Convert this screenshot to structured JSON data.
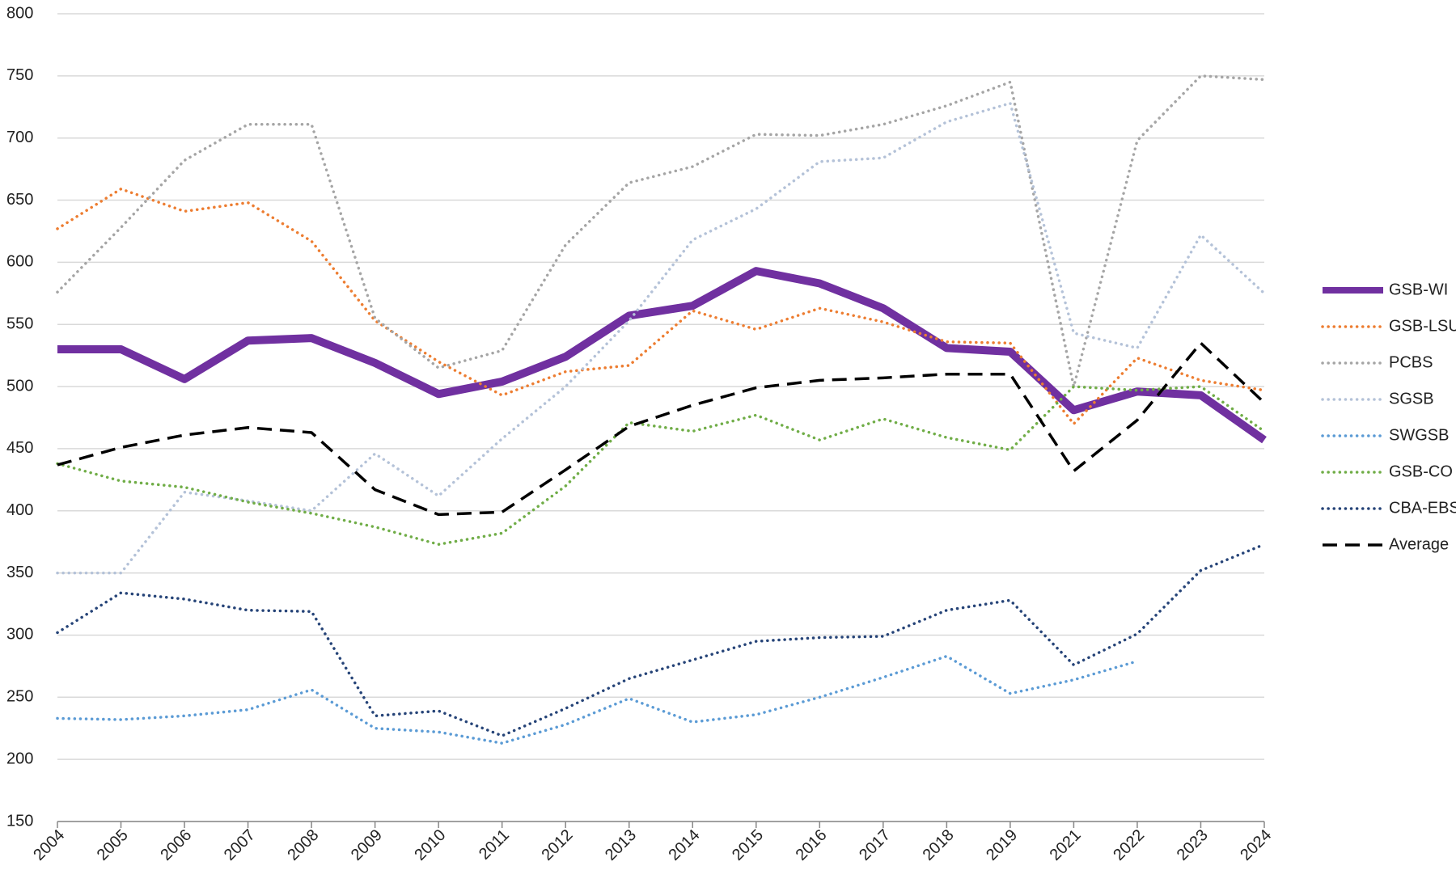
{
  "chart_data": {
    "type": "line",
    "categories": [
      "2004",
      "2005",
      "2006",
      "2007",
      "2008",
      "2009",
      "2010",
      "2011",
      "2012",
      "2013",
      "2014",
      "2015",
      "2016",
      "2017",
      "2018",
      "2019",
      "2021",
      "2022",
      "2023",
      "2024"
    ],
    "ylim": [
      150,
      800
    ],
    "yticks": [
      150,
      200,
      250,
      300,
      350,
      400,
      450,
      500,
      550,
      600,
      650,
      700,
      750,
      800
    ],
    "grid": true,
    "legend": "right",
    "series": [
      {
        "name": "GSB-WI",
        "color": "#7030a0",
        "style": "thick",
        "values": [
          530,
          530,
          506,
          537,
          539,
          519,
          494,
          504,
          524,
          557,
          565,
          593,
          583,
          563,
          531,
          528,
          481,
          496,
          493,
          457
        ]
      },
      {
        "name": "GSB-LSU",
        "color": "#ed7d31",
        "style": "dotted",
        "values": [
          627,
          659,
          641,
          648,
          617,
          553,
          520,
          493,
          512,
          517,
          561,
          546,
          563,
          552,
          536,
          535,
          470,
          523,
          505,
          497
        ]
      },
      {
        "name": "PCBS",
        "color": "#a5a5a5",
        "style": "dotted",
        "values": [
          576,
          628,
          682,
          711,
          711,
          555,
          515,
          529,
          614,
          664,
          677,
          703,
          702,
          711,
          726,
          745,
          500,
          698,
          750,
          747
        ]
      },
      {
        "name": "SGSB",
        "color": "#b4c2d8",
        "style": "dotted",
        "values": [
          350,
          350,
          415,
          408,
          400,
          446,
          412,
          458,
          500,
          553,
          618,
          643,
          681,
          684,
          713,
          728,
          543,
          531,
          622,
          575
        ]
      },
      {
        "name": "SWGSB",
        "color": "#5b9bd5",
        "style": "dotted",
        "values": [
          233,
          232,
          235,
          240,
          256,
          225,
          222,
          213,
          228,
          249,
          230,
          236,
          250,
          266,
          283,
          253,
          264,
          279,
          null,
          null
        ]
      },
      {
        "name": "GSB-CO",
        "color": "#70ad47",
        "style": "dotted",
        "values": [
          438,
          424,
          419,
          407,
          398,
          387,
          373,
          382,
          420,
          471,
          464,
          477,
          457,
          474,
          459,
          449,
          500,
          497,
          500,
          464
        ]
      },
      {
        "name": "CBA-EBS",
        "color": "#264478",
        "style": "dotted",
        "values": [
          302,
          334,
          329,
          320,
          319,
          235,
          239,
          219,
          241,
          265,
          280,
          295,
          298,
          299,
          320,
          328,
          276,
          301,
          352,
          373
        ]
      },
      {
        "name": "Average",
        "color": "#000000",
        "style": "dashed",
        "values": [
          437,
          451,
          461,
          467,
          463,
          417,
          397,
          399,
          433,
          468,
          485,
          499,
          505,
          507,
          510,
          510,
          432,
          473,
          535,
          487
        ]
      }
    ]
  }
}
